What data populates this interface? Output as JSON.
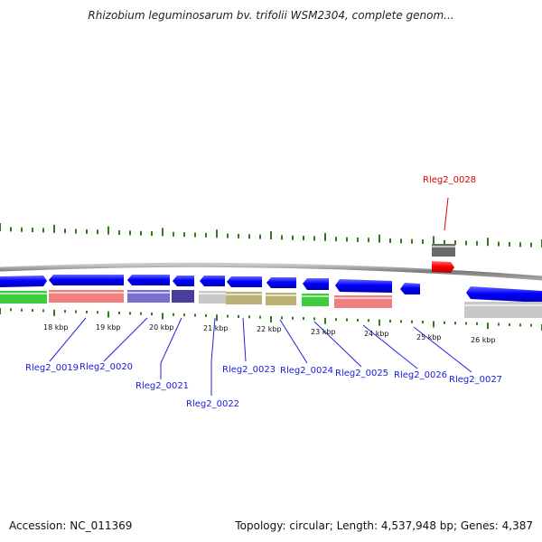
{
  "title": "Rhizobium leguminosarum bv. trifolii WSM2304, complete genom...",
  "footer": {
    "accession": "Accession: NC_011369",
    "summary": "Topology: circular; Length: 4,537,948 bp; Genes: 4,387"
  },
  "ticks": [
    "18 kbp",
    "19 kbp",
    "20 kbp",
    "21 kbp",
    "22 kbp",
    "23 kbp",
    "24 kbp",
    "25 kbp",
    "26 kbp"
  ],
  "genes": [
    {
      "label": "Rleg2_0019",
      "color": "#1a1adc"
    },
    {
      "label": "Rleg2_0020",
      "color": "#1a1adc"
    },
    {
      "label": "Rleg2_0021",
      "color": "#1a1adc"
    },
    {
      "label": "Rleg2_0022",
      "color": "#1a1adc"
    },
    {
      "label": "Rleg2_0023",
      "color": "#1a1adc"
    },
    {
      "label": "Rleg2_0024",
      "color": "#1a1adc"
    },
    {
      "label": "Rleg2_0025",
      "color": "#1a1adc"
    },
    {
      "label": "Rleg2_0026",
      "color": "#1a1adc"
    },
    {
      "label": "Rleg2_0027",
      "color": "#1a1adc"
    },
    {
      "label": "Rleg2_0028",
      "color": "#e00000"
    }
  ],
  "colors": {
    "gene_forward": "#0000ff",
    "gene_highlight": "#ff0000",
    "backbone": "#8a8a8a",
    "tick": "#2e7d1a",
    "cog_green": "#3ccc3c",
    "cog_pink": "#f08080",
    "cog_purple": "#7a6fd0",
    "cog_dark_purple": "#4a3e9c",
    "cog_grey": "#c8c8c8",
    "cog_olive": "#bdb276",
    "cog_dark_grey": "#6a6a6a"
  }
}
